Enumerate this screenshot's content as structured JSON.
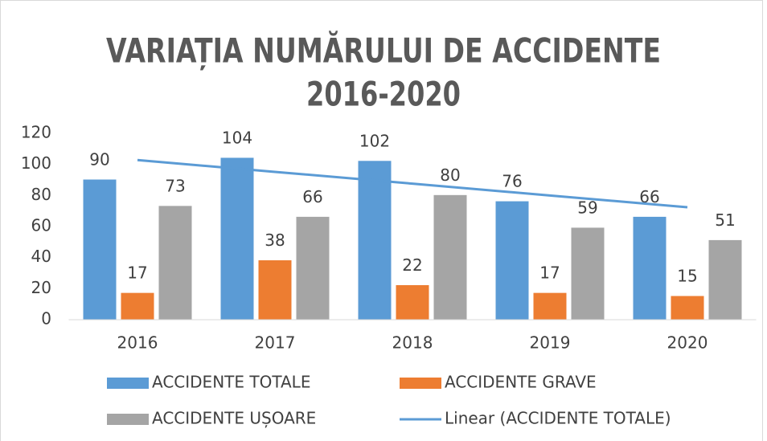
{
  "chart_data": {
    "type": "bar",
    "title": [
      "VARIAȚIA NUMĂRULUI DE ACCIDENTE",
      "2016-2020"
    ],
    "categories": [
      "2016",
      "2017",
      "2018",
      "2019",
      "2020"
    ],
    "series": [
      {
        "name": "ACCIDENTE TOTALE",
        "color": "#5b9bd5",
        "values": [
          90,
          104,
          102,
          76,
          66
        ]
      },
      {
        "name": "ACCIDENTE GRAVE",
        "color": "#ed7d31",
        "values": [
          17,
          38,
          22,
          17,
          15
        ]
      },
      {
        "name": "ACCIDENTE UȘOARE",
        "color": "#a5a5a5",
        "values": [
          73,
          66,
          80,
          59,
          51
        ]
      },
      {
        "name": "Linear (ACCIDENTE TOTALE)",
        "type": "line",
        "color": "#5b9bd5",
        "values": [
          102.8,
          95.2,
          87.6,
          80,
          72.4
        ]
      }
    ],
    "ylim": [
      0,
      120
    ],
    "yticks": [
      0,
      20,
      40,
      60,
      80,
      100,
      120
    ],
    "grid": false,
    "legend": "bottom"
  }
}
